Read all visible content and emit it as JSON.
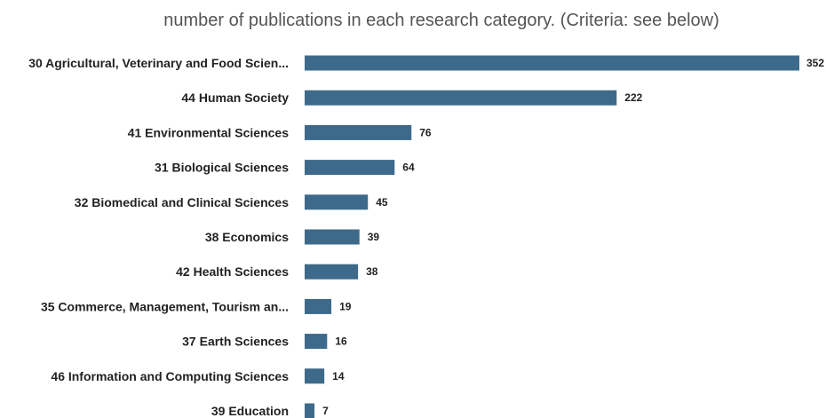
{
  "chart_data": {
    "type": "bar",
    "orientation": "horizontal",
    "title": "number of publications in each research category. (Criteria: see below)",
    "categories": [
      "30 Agricultural, Veterinary and Food Scien...",
      "44 Human Society",
      "41 Environmental Sciences",
      "31 Biological Sciences",
      "32 Biomedical and Clinical Sciences",
      "38 Economics",
      "42 Health Sciences",
      "35 Commerce, Management, Tourism an...",
      "37 Earth Sciences",
      "46 Information and Computing Sciences",
      "39 Education"
    ],
    "values": [
      352,
      222,
      76,
      64,
      45,
      39,
      38,
      19,
      16,
      14,
      7
    ],
    "xlim": [
      0,
      352
    ],
    "grid": false,
    "legend": "none",
    "colors": {
      "bar": "#3d6a8a",
      "text": "#222222",
      "title": "#555555"
    }
  }
}
